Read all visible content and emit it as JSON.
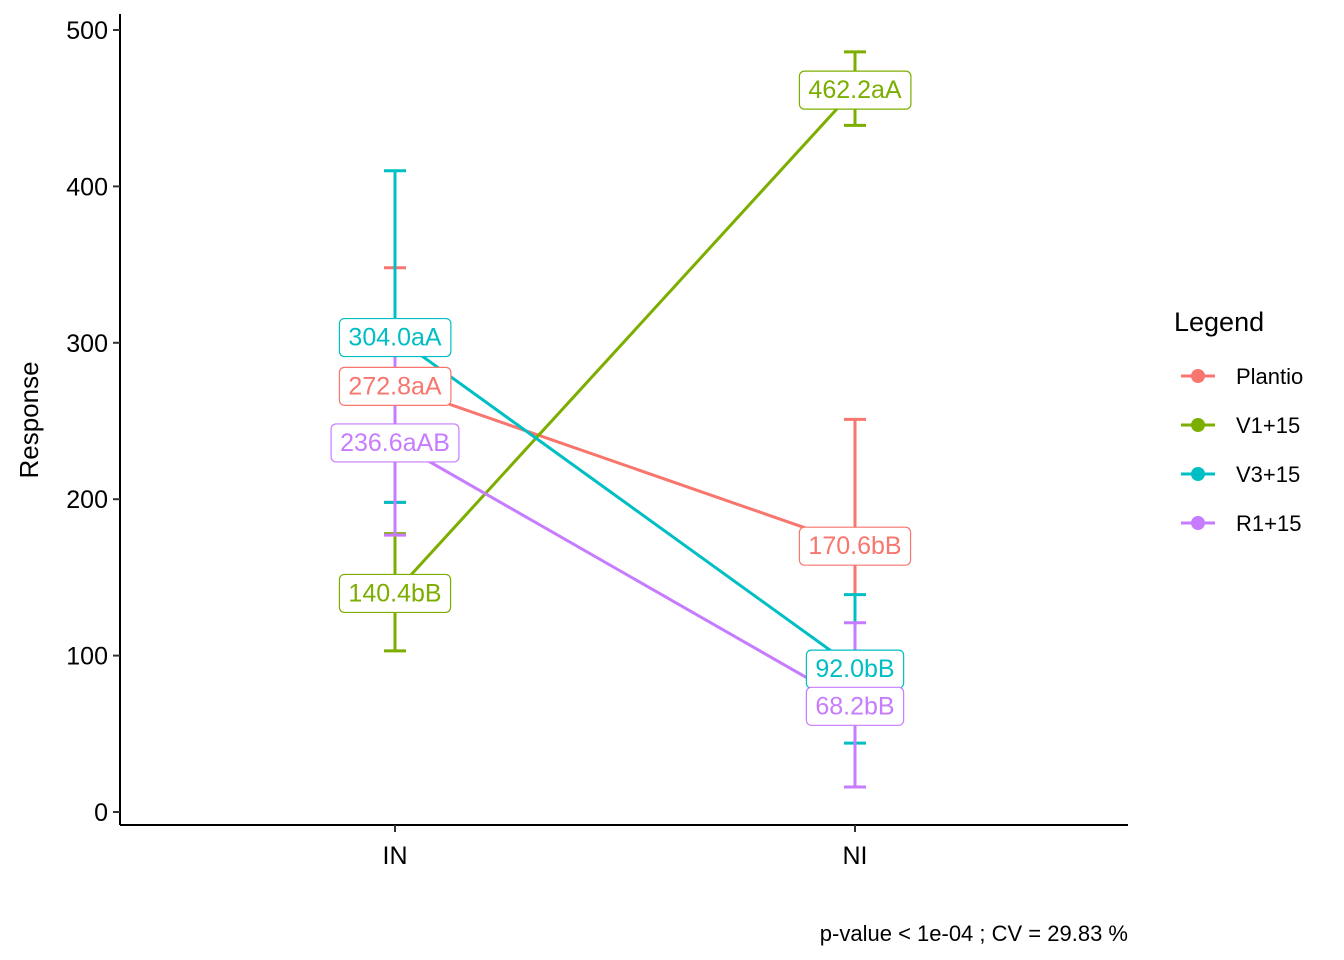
{
  "chart_data": {
    "type": "line",
    "title": "",
    "xlabel": "",
    "ylabel": "Response",
    "ylim": [
      0,
      500
    ],
    "yticks": [
      0,
      100,
      200,
      300,
      400,
      500
    ],
    "categories": [
      "IN",
      "NI"
    ],
    "grid": false,
    "legend": {
      "title": "Legend",
      "position": "right"
    },
    "caption": "p-value  < 1e-04 ; CV =  29.83 %",
    "series": [
      {
        "name": "Plantio",
        "color": "#F8766D",
        "values": [
          272.8,
          170.6
        ],
        "error_low": [
          198,
          90
        ],
        "error_high": [
          348,
          251
        ],
        "labels": [
          "272.8aA",
          "170.6bB"
        ]
      },
      {
        "name": "V1+15",
        "color": "#7CAE00",
        "values": [
          140.4,
          462.2
        ],
        "error_low": [
          103,
          439
        ],
        "error_high": [
          178,
          486
        ],
        "labels": [
          "140.4bB",
          "462.2aA"
        ]
      },
      {
        "name": "V3+15",
        "color": "#00BFC4",
        "values": [
          304.0,
          92.0
        ],
        "error_low": [
          198,
          44
        ],
        "error_high": [
          410,
          139
        ],
        "labels": [
          "304.0aA",
          "92.0bB"
        ]
      },
      {
        "name": "R1+15",
        "color": "#C77CFF",
        "values": [
          236.6,
          68.2
        ],
        "error_low": [
          177,
          16
        ],
        "error_high": [
          296,
          121
        ],
        "labels": [
          "236.6aAB",
          "68.2bB"
        ]
      }
    ]
  }
}
